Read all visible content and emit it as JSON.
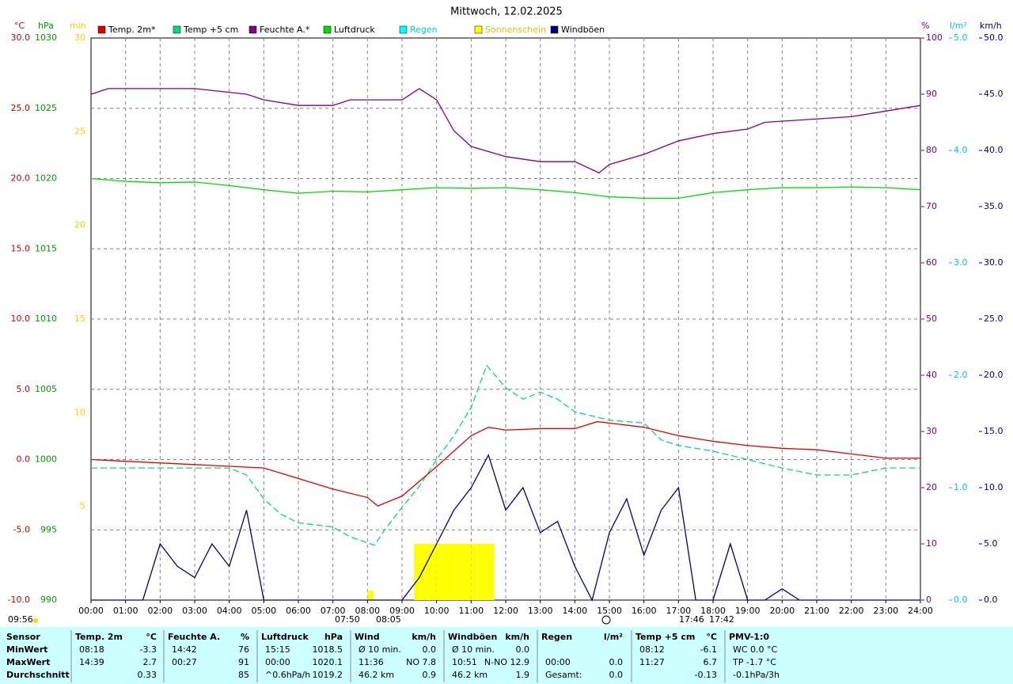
{
  "chart_data": {
    "type": "line",
    "title": "Mittwoch, 12.02.2025",
    "xlim": [
      0,
      24
    ],
    "xticks": [
      {
        "value": 0,
        "label": "00:00"
      },
      {
        "value": 1,
        "label": "01:00"
      },
      {
        "value": 2,
        "label": "02:00"
      },
      {
        "value": 3,
        "label": "03:00"
      },
      {
        "value": 4,
        "label": "04:00"
      },
      {
        "value": 5,
        "label": "05:00"
      },
      {
        "value": 6,
        "label": "06:00"
      },
      {
        "value": 7,
        "label": "07:00"
      },
      {
        "value": 8,
        "label": "08:00"
      },
      {
        "value": 9,
        "label": "09:00"
      },
      {
        "value": 10,
        "label": "10:00"
      },
      {
        "value": 11,
        "label": "11:00"
      },
      {
        "value": 12,
        "label": "12:00"
      },
      {
        "value": 13,
        "label": "13:00"
      },
      {
        "value": 14,
        "label": "14:00"
      },
      {
        "value": 15,
        "label": "15:00"
      },
      {
        "value": 16,
        "label": "16:00"
      },
      {
        "value": 17,
        "label": "17:00"
      },
      {
        "value": 18,
        "label": "18:00"
      },
      {
        "value": 19,
        "label": "19:00"
      },
      {
        "value": 20,
        "label": "20:00"
      },
      {
        "value": 21,
        "label": "21:00"
      },
      {
        "value": 22,
        "label": "22:00"
      },
      {
        "value": 23,
        "label": "23:00"
      },
      {
        "value": 24,
        "label": "24:00"
      }
    ],
    "grid": true,
    "axes": [
      {
        "label": "°C",
        "color": "#cc0000",
        "side": "left",
        "lim": [
          -10,
          30
        ],
        "ticks": [
          {
            "value": -10,
            "label": "-10.0"
          },
          {
            "value": -5,
            "label": "-5.0"
          },
          {
            "value": 0,
            "label": "0.0"
          },
          {
            "value": 5,
            "label": "5.0"
          },
          {
            "value": 10,
            "label": "10.0"
          },
          {
            "value": 15,
            "label": "15.0"
          },
          {
            "value": 20,
            "label": "20.0"
          },
          {
            "value": 25,
            "label": "25.0"
          },
          {
            "value": 30,
            "label": "30.0"
          }
        ]
      },
      {
        "label": "hPa",
        "color": "#009900",
        "side": "left",
        "lim": [
          990,
          1030
        ],
        "ticks": [
          990,
          995,
          1000,
          1005,
          1010,
          1015,
          1020,
          1025,
          1030
        ]
      },
      {
        "label": "min",
        "color": "#dddd00",
        "side": "left",
        "lim": [
          0,
          30
        ],
        "ticks": [
          5,
          10,
          15,
          20,
          25,
          30
        ]
      },
      {
        "label": "%",
        "color": "#800080",
        "side": "right",
        "lim": [
          0,
          100
        ],
        "ticks": [
          0,
          10,
          20,
          30,
          40,
          50,
          60,
          70,
          80,
          90,
          100
        ]
      },
      {
        "label": "l/m²",
        "color": "#00cccc",
        "side": "right",
        "lim": [
          0,
          5
        ],
        "ticks": [
          {
            "value": 0,
            "label": "0.0"
          },
          {
            "value": 1,
            "label": "1.0"
          },
          {
            "value": 2,
            "label": "2.0"
          },
          {
            "value": 3,
            "label": "3.0"
          },
          {
            "value": 4,
            "label": "4.0"
          },
          {
            "value": 5,
            "label": "5.0"
          }
        ]
      },
      {
        "label": "km/h",
        "color": "#000080",
        "side": "right",
        "lim": [
          0,
          50
        ],
        "ticks": [
          {
            "value": 0,
            "label": "0.0"
          },
          {
            "value": 5,
            "label": "5.0"
          },
          {
            "value": 10,
            "label": "10.0"
          },
          {
            "value": 15,
            "label": "15.0"
          },
          {
            "value": 20,
            "label": "20.0"
          },
          {
            "value": 25,
            "label": "25.0"
          },
          {
            "value": 30,
            "label": "30.0"
          },
          {
            "value": 35,
            "label": "35.0"
          },
          {
            "value": 40,
            "label": "40.0"
          },
          {
            "value": 45,
            "label": "45.0"
          },
          {
            "value": 50,
            "label": "50.0"
          }
        ]
      }
    ],
    "series": [
      {
        "name": "Temp. 2m*",
        "color": "#e00000",
        "axis": 0,
        "style": "line",
        "x": [
          0,
          5,
          7,
          8,
          8.3,
          9,
          10,
          11,
          11.5,
          12,
          13,
          14,
          14.65,
          15,
          16,
          17,
          18,
          19,
          20,
          21,
          22,
          23,
          24
        ],
        "values": [
          0,
          -0.6,
          -2.1,
          -2.7,
          -3.3,
          -2.6,
          -0.5,
          1.7,
          2.3,
          2.1,
          2.2,
          2.2,
          2.7,
          2.6,
          2.3,
          1.7,
          1.3,
          1.0,
          0.8,
          0.7,
          0.4,
          0.1,
          0.1
        ]
      },
      {
        "name": "Temp +5 cm",
        "color": "#00dd77",
        "axis": 0,
        "style": "dashed",
        "x": [
          0,
          4,
          4.5,
          5,
          5.5,
          6,
          7,
          7.5,
          8.2,
          8.5,
          9,
          9.5,
          10,
          10.5,
          11,
          11.45,
          12,
          12.5,
          13,
          13.5,
          14,
          15,
          16,
          16.5,
          17,
          18,
          19,
          20,
          21,
          22,
          23,
          24
        ],
        "values": [
          -0.6,
          -0.6,
          -1.1,
          -2.8,
          -3.9,
          -4.5,
          -4.8,
          -5.5,
          -6.1,
          -5.0,
          -3.4,
          -1.9,
          0.0,
          1.7,
          3.7,
          6.7,
          5.1,
          4.3,
          4.8,
          4.3,
          3.4,
          2.8,
          2.6,
          1.4,
          1.0,
          0.6,
          0.0,
          -0.6,
          -1.1,
          -1.1,
          -0.6,
          -0.6
        ]
      },
      {
        "name": "Feuchte A.*",
        "color": "#800080",
        "axis": 3,
        "style": "line",
        "x": [
          0,
          0.5,
          3,
          4.5,
          5,
          6,
          7,
          7.5,
          9,
          9.5,
          10,
          10.5,
          11,
          12,
          13,
          14,
          14.7,
          15,
          16,
          17,
          18,
          19,
          19.5,
          21,
          22,
          23,
          24
        ],
        "values": [
          90,
          91,
          91,
          90,
          89,
          88,
          88,
          89,
          89,
          91,
          89,
          83.5,
          80.7,
          78.9,
          78,
          78,
          76,
          77.5,
          79.3,
          81.7,
          83,
          83.8,
          85,
          85.6,
          86,
          87,
          88
        ]
      },
      {
        "name": "Luftdruck",
        "color": "#00dd00",
        "axis": 1,
        "style": "line",
        "x": [
          0,
          1,
          2,
          3,
          4,
          5,
          6,
          7,
          8,
          9,
          10,
          11,
          12,
          13,
          14,
          15,
          16,
          17,
          18,
          19,
          20,
          21,
          22,
          23,
          24
        ],
        "values": [
          1020.0,
          1019.8,
          1019.7,
          1019.75,
          1019.5,
          1019.2,
          1018.95,
          1019.1,
          1019.05,
          1019.2,
          1019.35,
          1019.3,
          1019.35,
          1019.2,
          1019.0,
          1018.7,
          1018.6,
          1018.6,
          1019.0,
          1019.2,
          1019.35,
          1019.35,
          1019.4,
          1019.35,
          1019.2
        ]
      },
      {
        "name": "Regen",
        "color": "#00ffff",
        "axis": 4,
        "style": "bar",
        "x": [],
        "values": []
      },
      {
        "name": "Sonnenschein",
        "color": "#ffff00",
        "axis": 2,
        "style": "bar",
        "x": [
          8.0,
          9.35,
          9.5,
          9.67,
          9.83,
          10.0,
          10.17,
          10.33,
          10.5,
          10.67,
          10.83,
          11.0,
          11.17,
          11.33,
          11.5
        ],
        "values": [
          0.5,
          3,
          3,
          3,
          3,
          3,
          3,
          3,
          3,
          3,
          3,
          3,
          3,
          3,
          3
        ]
      },
      {
        "name": "Windböen",
        "color": "#000080",
        "axis": 5,
        "style": "line",
        "x": [
          0,
          0.5,
          1,
          1.5,
          2,
          2.5,
          3,
          3.5,
          4,
          4.5,
          5,
          5.5,
          6,
          6.5,
          7,
          7.5,
          8,
          8.5,
          9,
          9.5,
          10,
          10.5,
          11,
          11.5,
          12,
          12.5,
          13,
          13.5,
          14,
          14.5,
          15,
          15.5,
          16,
          16.5,
          17,
          17.5,
          18,
          18.5,
          19,
          19.5,
          20,
          20.5,
          21,
          21.5,
          22,
          22.5,
          23,
          23.5,
          24
        ],
        "values": [
          0,
          0,
          0,
          0,
          5,
          3,
          2,
          5,
          3,
          8,
          0,
          0,
          0,
          0,
          0,
          0,
          0,
          0,
          0,
          2,
          5,
          8,
          10,
          12.9,
          8,
          10,
          6,
          7,
          3,
          0,
          6,
          9,
          4,
          8,
          10,
          0,
          0,
          5,
          0,
          0,
          1,
          0,
          0,
          0,
          0,
          0,
          0,
          0,
          0
        ]
      }
    ],
    "annotations": [
      "09:56",
      "07:50",
      "08:05",
      "17:46",
      "17:42"
    ]
  },
  "summary": {
    "row_labels": [
      "Sensor",
      "MinWert",
      "MaxWert",
      "Durchschnitt"
    ],
    "columns": [
      {
        "header": [
          "Temp. 2m",
          "°C"
        ],
        "rows": [
          {
            "left": "08:18",
            "right": "-3.3"
          },
          {
            "left": "14:39",
            "right": "2.7"
          },
          {
            "right": "0.33"
          }
        ]
      },
      {
        "header": [
          "Feuchte A.",
          "%"
        ],
        "rows": [
          {
            "left": "14:42",
            "right": "76"
          },
          {
            "left": "00:27",
            "right": "91"
          },
          {
            "right": "85"
          }
        ]
      },
      {
        "header": [
          "Luftdruck",
          "hPa"
        ],
        "rows": [
          {
            "left": "15:15",
            "right": "1018.5"
          },
          {
            "left": "00:00",
            "right": "1020.1"
          },
          {
            "left": "^0.6hPa/h",
            "right": "1019.2"
          }
        ]
      },
      {
        "header": [
          "Wind",
          "km/h"
        ],
        "rows": [
          {
            "left": "Ø 10 min.",
            "right": "0.0"
          },
          {
            "left": "11:36",
            "right": "NO 7.8"
          },
          {
            "left": "46.2 km",
            "right": "0.9"
          }
        ]
      },
      {
        "header": [
          "Windböen",
          "km/h"
        ],
        "rows": [
          {
            "left": "Ø 10 min.",
            "right": "0.0"
          },
          {
            "left": "10:51",
            "right": "N-NO 12.9"
          },
          {
            "left": "46.2 km",
            "right": "1.9"
          }
        ]
      },
      {
        "header": [
          "Regen",
          "l/m²"
        ],
        "rows": [
          {},
          {
            "left": "00:00",
            "right": "0.0"
          },
          {
            "left": "Gesamt:",
            "right": "0.0"
          }
        ]
      },
      {
        "header": [
          "Temp +5 cm",
          "°C"
        ],
        "rows": [
          {
            "left": "08:12",
            "right": "-6.1"
          },
          {
            "left": "11:27",
            "right": "6.7"
          },
          {
            "right": "-0.13"
          }
        ]
      },
      {
        "header": [
          "PMV-1:0"
        ],
        "rows": [
          {
            "left": "WC 0.0 °C"
          },
          {
            "left": "TP -1.7 °C"
          },
          {
            "left": "-0.1hPa/3h"
          }
        ]
      }
    ]
  }
}
